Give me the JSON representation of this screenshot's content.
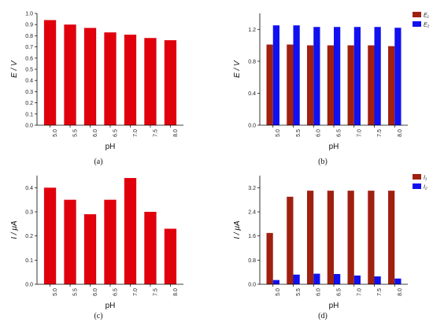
{
  "chart_data": [
    {
      "type": "bar",
      "panel_label": "(a)",
      "categories": [
        "5.0",
        "5.5",
        "6.0",
        "6.5",
        "7.0",
        "7.5",
        "8.0"
      ],
      "series": [
        {
          "values": [
            0.94,
            0.9,
            0.87,
            0.83,
            0.81,
            0.78,
            0.76
          ],
          "color": "#e0000c"
        }
      ],
      "xlabel": "pH",
      "ylabel": "E / V",
      "ylim": [
        0,
        1.0
      ],
      "yticks": [
        "0.0",
        "0.1",
        "0.2",
        "0.3",
        "0.4",
        "0.5",
        "0.6",
        "0.7",
        "0.8",
        "0.9",
        "1.0"
      ],
      "legend": null
    },
    {
      "type": "bar",
      "panel_label": "(b)",
      "categories": [
        "5.0",
        "5.5",
        "6.0",
        "6.5",
        "7.0",
        "7.5",
        "8.0"
      ],
      "series": [
        {
          "name": "E₁",
          "values": [
            1.01,
            1.01,
            1.0,
            1.0,
            1.0,
            1.0,
            0.99
          ],
          "color": "#a02010"
        },
        {
          "name": "E₂",
          "values": [
            1.25,
            1.25,
            1.23,
            1.23,
            1.23,
            1.23,
            1.22
          ],
          "color": "#1010f0"
        }
      ],
      "xlabel": "pH",
      "ylabel": "E / V",
      "ylim": [
        0,
        1.4
      ],
      "yticks": [
        "0.0",
        "0.4",
        "0.8",
        "1.2"
      ],
      "legend": "top-right"
    },
    {
      "type": "bar",
      "panel_label": "(c)",
      "categories": [
        "5.0",
        "5.5",
        "6.0",
        "6.5",
        "7.0",
        "7.5",
        "8.0"
      ],
      "series": [
        {
          "values": [
            0.4,
            0.35,
            0.29,
            0.35,
            0.44,
            0.3,
            0.23
          ],
          "color": "#e0000c"
        }
      ],
      "xlabel": "pH",
      "ylabel": "I / μA",
      "ylim": [
        0,
        0.45
      ],
      "yticks": [
        "0.0",
        "0.1",
        "0.2",
        "0.3",
        "0.4"
      ],
      "legend": null
    },
    {
      "type": "bar",
      "panel_label": "(d)",
      "categories": [
        "5.0",
        "5.5",
        "6.0",
        "6.5",
        "7.0",
        "7.5",
        "8.0"
      ],
      "series": [
        {
          "name": "I₁",
          "values": [
            1.7,
            2.9,
            3.1,
            3.1,
            3.1,
            3.1,
            3.1
          ],
          "color": "#a02010"
        },
        {
          "name": "I₂",
          "values": [
            0.14,
            0.32,
            0.35,
            0.34,
            0.29,
            0.26,
            0.19
          ],
          "color": "#1010f0"
        }
      ],
      "xlabel": "pH",
      "ylabel": "I / μA",
      "ylim": [
        0,
        3.6
      ],
      "yticks": [
        "0.0",
        "0.8",
        "1.6",
        "2.4",
        "3.2"
      ],
      "legend": "top-right"
    }
  ]
}
